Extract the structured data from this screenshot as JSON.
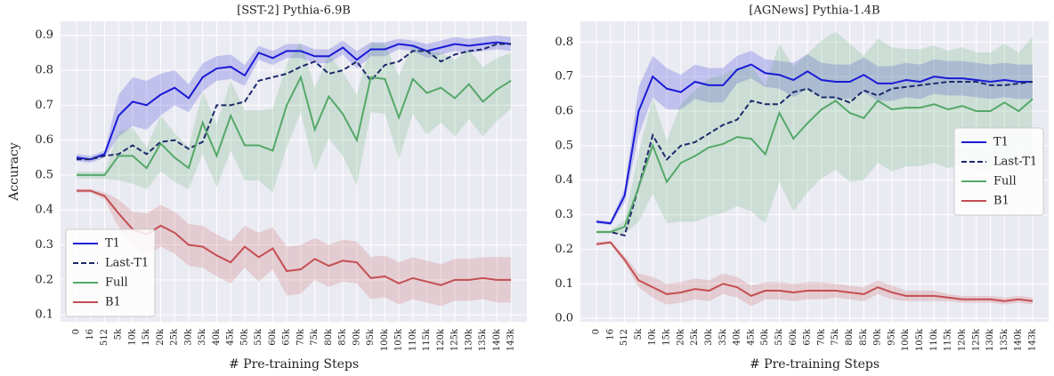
{
  "chart_data": [
    {
      "type": "line",
      "title": "[SST-2] Pythia-6.9B",
      "xlabel": "# Pre-training Steps",
      "ylabel": "Accuracy",
      "categories": [
        "0",
        "16",
        "512",
        "5k",
        "10k",
        "15k",
        "20k",
        "25k",
        "30k",
        "35k",
        "40k",
        "45k",
        "50k",
        "55k",
        "60k",
        "65k",
        "70k",
        "75k",
        "80k",
        "85k",
        "90k",
        "95k",
        "100k",
        "105k",
        "110k",
        "115k",
        "120k",
        "125k",
        "130k",
        "135k",
        "140k",
        "143k"
      ],
      "ylim": [
        0.08,
        0.94
      ],
      "yticks": [
        0.1,
        0.2,
        0.3,
        0.4,
        0.5,
        0.6,
        0.7,
        0.8,
        0.9
      ],
      "grid": true,
      "legend": "lower left",
      "series": [
        {
          "name": "T1",
          "color": "#1a1ad6",
          "linestyle": "solid",
          "values": [
            0.55,
            0.545,
            0.56,
            0.67,
            0.71,
            0.7,
            0.73,
            0.75,
            0.72,
            0.78,
            0.805,
            0.81,
            0.785,
            0.85,
            0.835,
            0.855,
            0.855,
            0.84,
            0.84,
            0.865,
            0.83,
            0.86,
            0.86,
            0.875,
            0.87,
            0.855,
            0.865,
            0.875,
            0.87,
            0.875,
            0.88,
            0.875
          ],
          "errors": [
            0.01,
            0.01,
            0.01,
            0.06,
            0.07,
            0.07,
            0.06,
            0.05,
            0.04,
            0.04,
            0.035,
            0.035,
            0.03,
            0.02,
            0.02,
            0.02,
            0.02,
            0.02,
            0.02,
            0.02,
            0.025,
            0.02,
            0.02,
            0.015,
            0.015,
            0.02,
            0.02,
            0.02,
            0.02,
            0.02,
            0.02,
            0.02
          ]
        },
        {
          "name": "Last-T1",
          "color": "#1b2a6b",
          "linestyle": "dashed",
          "values": [
            0.545,
            0.545,
            0.555,
            0.56,
            0.585,
            0.56,
            0.595,
            0.6,
            0.575,
            0.595,
            0.7,
            0.7,
            0.71,
            0.77,
            0.78,
            0.79,
            0.81,
            0.825,
            0.79,
            0.8,
            0.825,
            0.77,
            0.815,
            0.825,
            0.855,
            0.855,
            0.825,
            0.845,
            0.855,
            0.86,
            0.875,
            0.875
          ]
        },
        {
          "name": "Full",
          "color": "#55a868",
          "linestyle": "solid",
          "values": [
            0.5,
            0.5,
            0.5,
            0.555,
            0.555,
            0.52,
            0.59,
            0.55,
            0.52,
            0.65,
            0.555,
            0.67,
            0.585,
            0.585,
            0.57,
            0.7,
            0.78,
            0.63,
            0.725,
            0.675,
            0.6,
            0.78,
            0.775,
            0.665,
            0.775,
            0.735,
            0.75,
            0.72,
            0.76,
            0.71,
            0.745,
            0.77
          ],
          "errors": [
            0.01,
            0.01,
            0.01,
            0.07,
            0.08,
            0.06,
            0.08,
            0.07,
            0.06,
            0.09,
            0.09,
            0.1,
            0.1,
            0.1,
            0.12,
            0.12,
            0.1,
            0.12,
            0.12,
            0.12,
            0.13,
            0.1,
            0.1,
            0.12,
            0.1,
            0.12,
            0.1,
            0.11,
            0.1,
            0.1,
            0.09,
            0.08
          ]
        },
        {
          "name": "B1",
          "color": "#c44e52",
          "linestyle": "solid",
          "values": [
            0.455,
            0.455,
            0.44,
            0.39,
            0.345,
            0.33,
            0.355,
            0.335,
            0.3,
            0.295,
            0.27,
            0.25,
            0.295,
            0.265,
            0.29,
            0.225,
            0.23,
            0.26,
            0.24,
            0.255,
            0.25,
            0.205,
            0.21,
            0.19,
            0.205,
            0.195,
            0.185,
            0.2,
            0.2,
            0.205,
            0.2,
            0.2
          ],
          "errors": [
            0.005,
            0.005,
            0.01,
            0.04,
            0.05,
            0.06,
            0.06,
            0.06,
            0.06,
            0.06,
            0.06,
            0.06,
            0.06,
            0.07,
            0.06,
            0.07,
            0.07,
            0.06,
            0.06,
            0.06,
            0.06,
            0.06,
            0.06,
            0.06,
            0.06,
            0.06,
            0.06,
            0.06,
            0.06,
            0.06,
            0.065,
            0.065
          ]
        }
      ]
    },
    {
      "type": "line",
      "title": "[AGNews] Pythia-1.4B",
      "xlabel": "# Pre-training Steps",
      "categories": [
        "0",
        "16",
        "512",
        "5k",
        "10k",
        "15k",
        "20k",
        "25k",
        "30k",
        "35k",
        "40k",
        "45k",
        "50k",
        "55k",
        "60k",
        "65k",
        "70k",
        "75k",
        "80k",
        "85k",
        "90k",
        "95k",
        "100k",
        "105k",
        "110k",
        "115k",
        "120k",
        "125k",
        "130k",
        "135k",
        "140k",
        "143k"
      ],
      "ylim": [
        -0.01,
        0.86
      ],
      "yticks": [
        {
          "value": 0,
          "label": "0.0"
        },
        0.1,
        0.2,
        0.3,
        0.4,
        0.5,
        0.6,
        0.7,
        0.8
      ],
      "grid": true,
      "legend": "center right",
      "series": [
        {
          "name": "T1",
          "color": "#1a1ad6",
          "linestyle": "solid",
          "values": [
            0.28,
            0.275,
            0.355,
            0.6,
            0.7,
            0.665,
            0.655,
            0.685,
            0.675,
            0.675,
            0.72,
            0.735,
            0.71,
            0.705,
            0.69,
            0.715,
            0.69,
            0.685,
            0.685,
            0.705,
            0.68,
            0.68,
            0.69,
            0.685,
            0.7,
            0.695,
            0.695,
            0.69,
            0.685,
            0.69,
            0.685,
            0.685
          ],
          "errors": [
            0.005,
            0.005,
            0.02,
            0.07,
            0.06,
            0.06,
            0.05,
            0.05,
            0.05,
            0.05,
            0.04,
            0.04,
            0.04,
            0.04,
            0.05,
            0.05,
            0.05,
            0.05,
            0.05,
            0.05,
            0.05,
            0.05,
            0.05,
            0.05,
            0.05,
            0.05,
            0.05,
            0.05,
            0.05,
            0.05,
            0.05,
            0.05
          ]
        },
        {
          "name": "Last-T1",
          "color": "#1b2a6b",
          "linestyle": "dashed",
          "values": [
            0.25,
            0.25,
            0.24,
            0.38,
            0.53,
            0.46,
            0.5,
            0.51,
            0.535,
            0.56,
            0.575,
            0.63,
            0.62,
            0.62,
            0.655,
            0.665,
            0.64,
            0.64,
            0.625,
            0.66,
            0.645,
            0.665,
            0.67,
            0.675,
            0.68,
            0.685,
            0.685,
            0.685,
            0.675,
            0.675,
            0.68,
            0.685
          ]
        },
        {
          "name": "Full",
          "color": "#55a868",
          "linestyle": "solid",
          "values": [
            0.25,
            0.25,
            0.265,
            0.38,
            0.5,
            0.395,
            0.45,
            0.47,
            0.495,
            0.505,
            0.525,
            0.52,
            0.475,
            0.595,
            0.52,
            0.565,
            0.605,
            0.63,
            0.595,
            0.58,
            0.63,
            0.605,
            0.61,
            0.61,
            0.62,
            0.605,
            0.615,
            0.6,
            0.6,
            0.625,
            0.6,
            0.635
          ],
          "errors": [
            0.005,
            0.005,
            0.02,
            0.1,
            0.14,
            0.12,
            0.17,
            0.19,
            0.2,
            0.2,
            0.2,
            0.21,
            0.2,
            0.2,
            0.21,
            0.2,
            0.2,
            0.2,
            0.2,
            0.18,
            0.18,
            0.18,
            0.17,
            0.17,
            0.17,
            0.17,
            0.17,
            0.17,
            0.17,
            0.17,
            0.17,
            0.18
          ]
        },
        {
          "name": "B1",
          "color": "#c44e52",
          "linestyle": "solid",
          "values": [
            0.215,
            0.22,
            0.17,
            0.11,
            0.09,
            0.07,
            0.075,
            0.085,
            0.08,
            0.1,
            0.09,
            0.065,
            0.08,
            0.08,
            0.075,
            0.08,
            0.08,
            0.08,
            0.075,
            0.07,
            0.09,
            0.075,
            0.065,
            0.065,
            0.065,
            0.06,
            0.055,
            0.055,
            0.055,
            0.05,
            0.055,
            0.05
          ],
          "errors": [
            0.005,
            0.005,
            0.01,
            0.02,
            0.03,
            0.03,
            0.03,
            0.03,
            0.03,
            0.03,
            0.03,
            0.03,
            0.025,
            0.025,
            0.025,
            0.025,
            0.025,
            0.02,
            0.02,
            0.02,
            0.02,
            0.02,
            0.015,
            0.015,
            0.015,
            0.01,
            0.01,
            0.01,
            0.01,
            0.01,
            0.01,
            0.01
          ]
        }
      ]
    }
  ]
}
